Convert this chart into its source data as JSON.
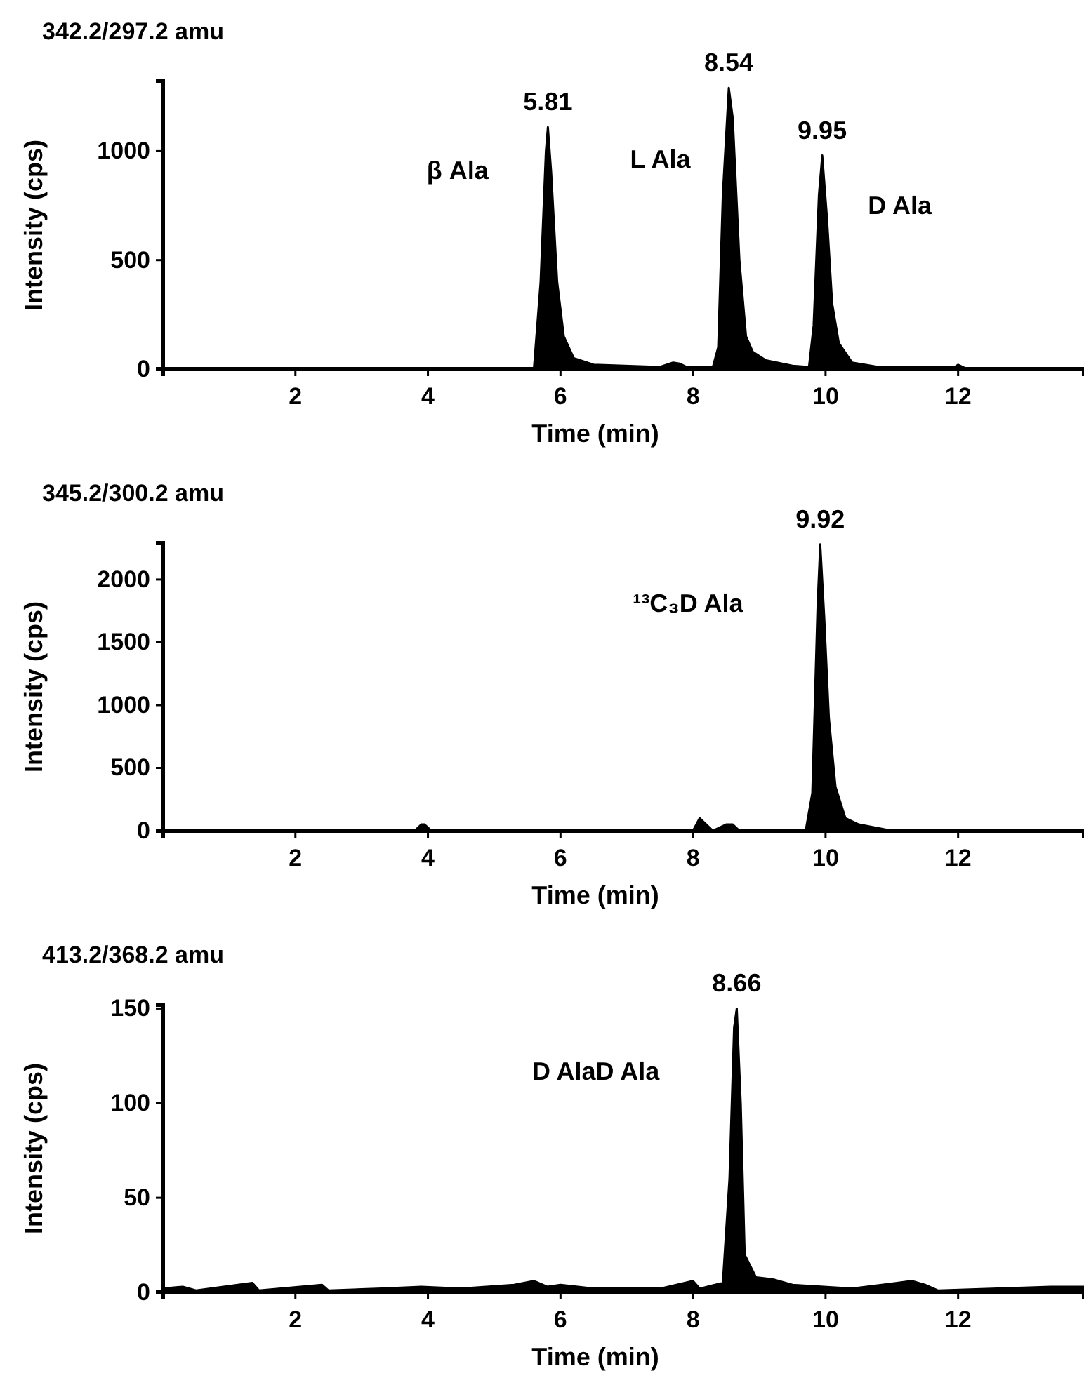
{
  "chart_data": [
    {
      "type": "area",
      "title": "342.2/297.2 amu",
      "xlabel": "Time (min)",
      "ylabel": "Intensity (cps)",
      "xlim": [
        0,
        13.9
      ],
      "xticks": [
        2,
        4,
        6,
        8,
        10,
        12
      ],
      "ylim": [
        0,
        1320
      ],
      "yticks": [
        0,
        500,
        1000
      ],
      "grid": false,
      "series": [
        {
          "color": "#000000",
          "x": [
            0,
            5.5,
            5.6,
            5.7,
            5.78,
            5.81,
            5.86,
            5.95,
            6.05,
            6.2,
            6.5,
            7.5,
            7.7,
            7.8,
            7.9,
            8.3,
            8.38,
            8.45,
            8.54,
            8.6,
            8.7,
            8.8,
            8.9,
            9.1,
            9.5,
            9.75,
            9.82,
            9.9,
            9.95,
            10.02,
            10.1,
            10.2,
            10.4,
            10.8,
            11.95,
            12.0,
            12.1,
            13.9
          ],
          "values": [
            0,
            0,
            5,
            400,
            1000,
            1110,
            900,
            400,
            150,
            50,
            20,
            10,
            30,
            25,
            10,
            10,
            100,
            800,
            1290,
            1150,
            500,
            150,
            80,
            40,
            15,
            10,
            200,
            800,
            980,
            700,
            300,
            120,
            30,
            10,
            10,
            20,
            5,
            5
          ]
        }
      ],
      "annotations": [
        {
          "text": "5.81",
          "x": 5.81,
          "y": 1110
        },
        {
          "text": "8.54",
          "x": 8.54,
          "y": 1290
        },
        {
          "text": "9.95",
          "x": 9.95,
          "y": 980
        },
        "β Ala",
        "L Ala",
        "D Ala"
      ]
    },
    {
      "type": "area",
      "title": "345.2/300.2 amu",
      "xlabel": "Time (min)",
      "ylabel": "Intensity (cps)",
      "xlim": [
        0,
        13.9
      ],
      "xticks": [
        2,
        4,
        6,
        8,
        10,
        12
      ],
      "ylim": [
        0,
        2290
      ],
      "yticks": [
        0,
        500,
        1000,
        1500,
        2000
      ],
      "grid": false,
      "series": [
        {
          "color": "#000000",
          "x": [
            0,
            3.8,
            3.9,
            3.95,
            4.05,
            8.0,
            8.1,
            8.2,
            8.3,
            8.5,
            8.6,
            8.7,
            9.7,
            9.8,
            9.88,
            9.92,
            9.98,
            10.05,
            10.15,
            10.3,
            10.5,
            11,
            13.9
          ],
          "values": [
            0,
            0,
            50,
            50,
            0,
            0,
            100,
            50,
            0,
            50,
            50,
            0,
            0,
            300,
            1800,
            2280,
            1700,
            900,
            350,
            100,
            50,
            0,
            0
          ]
        }
      ],
      "annotations": [
        {
          "text": "9.92",
          "x": 9.92,
          "y": 2280
        },
        "¹³C₃D Ala"
      ]
    },
    {
      "type": "area",
      "title": "413.2/368.2 amu",
      "xlabel": "Time (min)",
      "ylabel": "Intensity (cps)",
      "xlim": [
        0,
        13.9
      ],
      "xticks": [
        2,
        4,
        6,
        8,
        10,
        12
      ],
      "ylim": [
        0,
        152
      ],
      "yticks": [
        0,
        50,
        100,
        150
      ],
      "grid": false,
      "series": [
        {
          "color": "#000000",
          "x": [
            0,
            0.3,
            0.5,
            1.35,
            1.45,
            2.4,
            2.5,
            3.3,
            3.9,
            4.5,
            5.3,
            5.6,
            5.8,
            6.0,
            6.5,
            7.5,
            8.0,
            8.1,
            8.45,
            8.55,
            8.62,
            8.66,
            8.72,
            8.78,
            8.85,
            8.95,
            9.2,
            9.5,
            10.4,
            11.3,
            11.5,
            11.7,
            13.4,
            13.9
          ],
          "values": [
            2,
            3,
            1,
            5,
            1,
            4,
            1,
            2,
            3,
            2,
            4,
            6,
            3,
            4,
            2,
            2,
            6,
            2,
            5,
            60,
            140,
            150,
            100,
            20,
            15,
            8,
            7,
            4,
            2,
            6,
            4,
            1,
            3,
            3
          ]
        }
      ],
      "annotations": [
        {
          "text": "8.66",
          "x": 8.66,
          "y": 150
        },
        "D AlaD Ala"
      ]
    }
  ]
}
